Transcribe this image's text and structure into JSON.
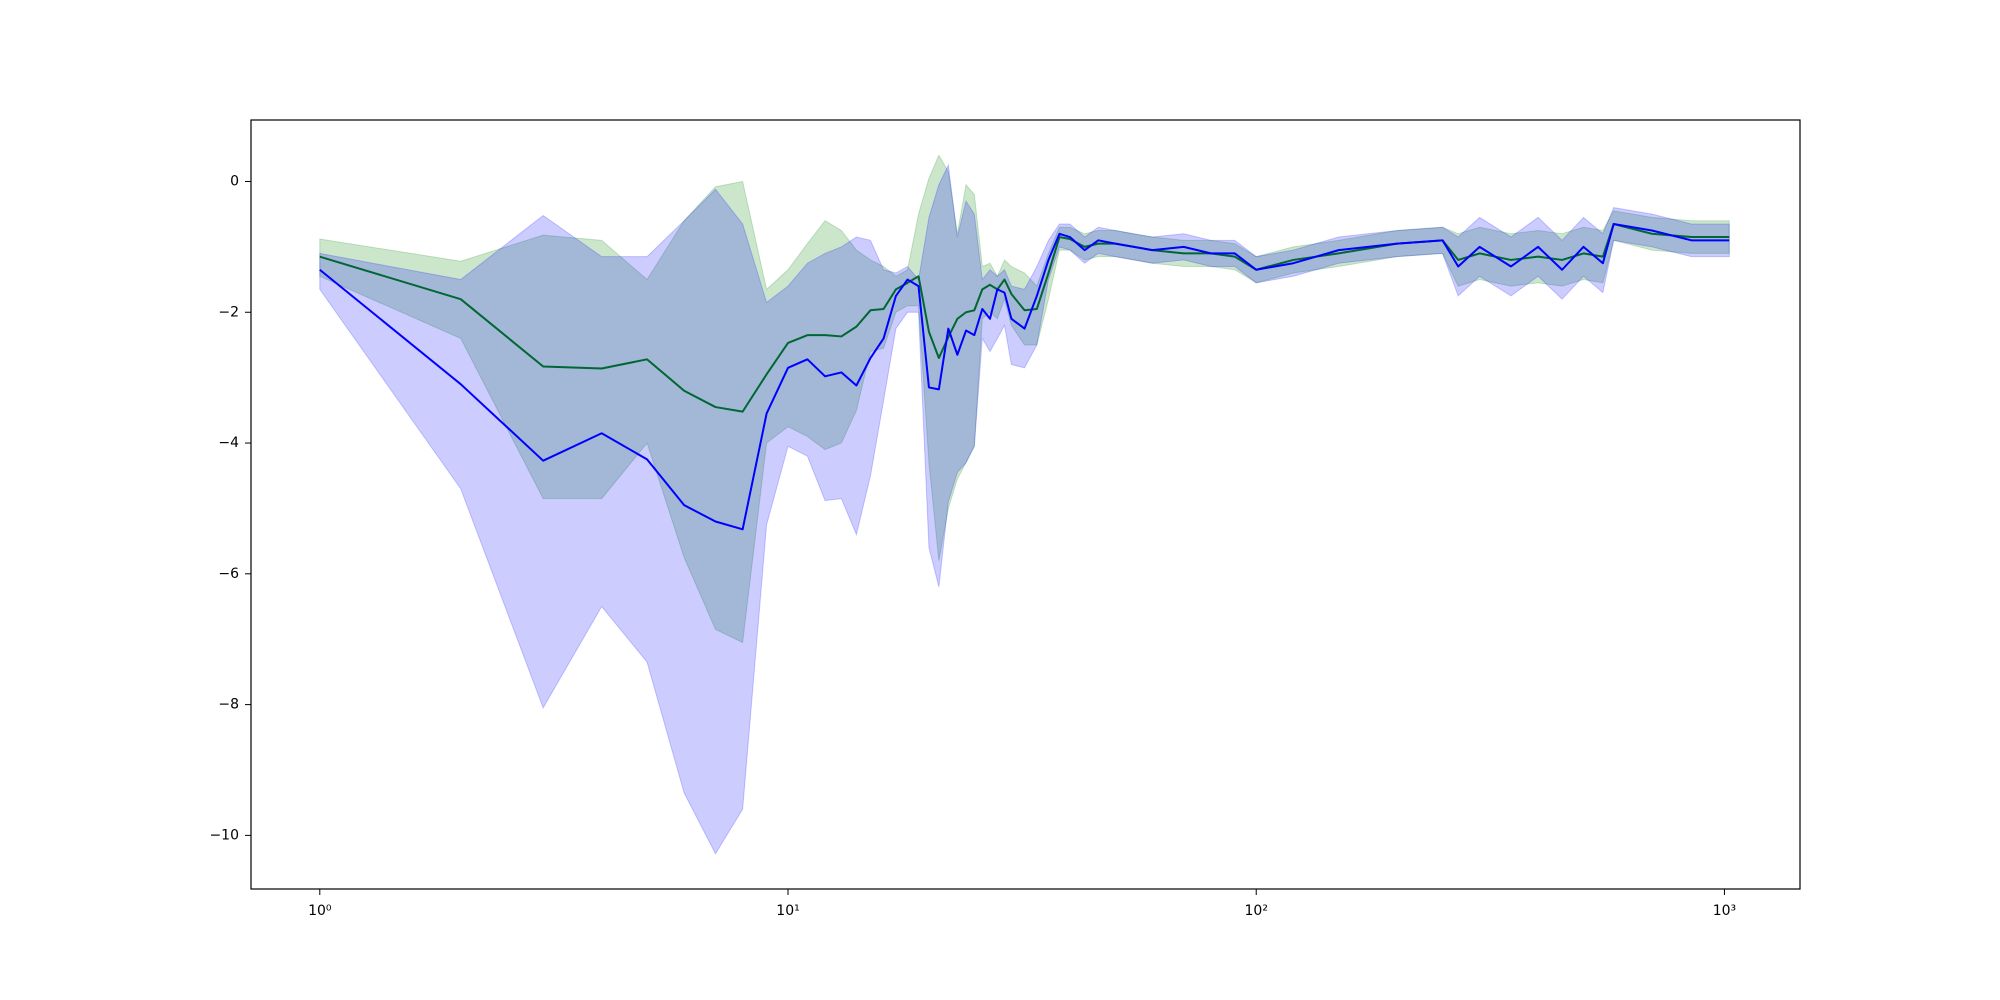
{
  "chart_data": {
    "type": "line",
    "xscale": "log",
    "x": [
      1,
      2,
      3,
      4,
      5,
      6,
      7,
      8,
      9,
      10,
      11,
      12,
      13,
      14,
      15,
      16,
      17,
      18,
      19,
      20,
      21,
      22,
      23,
      24,
      25,
      26,
      27,
      28,
      29,
      30,
      32,
      34,
      36,
      38,
      40,
      43,
      46,
      50,
      60,
      70,
      80,
      90,
      100,
      120,
      150,
      200,
      250,
      270,
      300,
      350,
      400,
      450,
      500,
      550,
      580,
      700,
      850,
      1024
    ],
    "series": [
      {
        "color": "#008000",
        "values": [
          -1.15,
          -1.8,
          -2.83,
          -2.86,
          -2.72,
          -3.2,
          -3.45,
          -3.52,
          -2.95,
          -2.47,
          -2.35,
          -2.35,
          -2.37,
          -2.22,
          -1.97,
          -1.95,
          -1.65,
          -1.55,
          -1.45,
          -2.3,
          -2.7,
          -2.38,
          -2.1,
          -2.0,
          -1.97,
          -1.65,
          -1.58,
          -1.65,
          -1.5,
          -1.72,
          -1.97,
          -1.95,
          -1.4,
          -0.85,
          -0.88,
          -1.0,
          -0.95,
          -0.95,
          -1.05,
          -1.1,
          -1.1,
          -1.15,
          -1.35,
          -1.2,
          -1.1,
          -0.95,
          -0.9,
          -1.2,
          -1.1,
          -1.2,
          -1.15,
          -1.2,
          -1.1,
          -1.15,
          -0.65,
          -0.8,
          -0.85,
          -0.85
        ],
        "lower": [
          -1.45,
          -2.4,
          -4.85,
          -4.85,
          -4.0,
          -5.75,
          -6.85,
          -7.05,
          -4.0,
          -3.75,
          -3.9,
          -4.1,
          -4.0,
          -3.5,
          -2.6,
          -2.55,
          -2.0,
          -1.9,
          -1.9,
          -4.3,
          -5.8,
          -5.0,
          -4.55,
          -4.3,
          -4.05,
          -2.1,
          -2.0,
          -2.1,
          -1.8,
          -2.2,
          -2.5,
          -2.5,
          -1.8,
          -1.05,
          -1.05,
          -1.2,
          -1.15,
          -1.15,
          -1.25,
          -1.3,
          -1.3,
          -1.35,
          -1.55,
          -1.4,
          -1.3,
          -1.15,
          -1.1,
          -1.6,
          -1.5,
          -1.6,
          -1.55,
          -1.6,
          -1.5,
          -1.55,
          -0.9,
          -1.05,
          -1.1,
          -1.1
        ],
        "upper": [
          -0.88,
          -1.22,
          -0.82,
          -0.9,
          -1.5,
          -0.6,
          -0.08,
          0.0,
          -1.65,
          -1.35,
          -0.95,
          -0.6,
          -0.75,
          -1.05,
          -1.2,
          -1.3,
          -1.45,
          -1.35,
          -0.5,
          0.05,
          0.4,
          0.15,
          -0.8,
          -0.05,
          -0.2,
          -1.3,
          -1.25,
          -1.45,
          -1.2,
          -1.3,
          -1.4,
          -1.6,
          -1.1,
          -0.7,
          -0.7,
          -0.8,
          -0.75,
          -0.75,
          -0.85,
          -0.9,
          -0.9,
          -0.95,
          -1.15,
          -1.0,
          -0.9,
          -0.75,
          -0.7,
          -0.8,
          -0.7,
          -0.8,
          -0.75,
          -0.8,
          -0.7,
          -0.75,
          -0.45,
          -0.55,
          -0.6,
          -0.6
        ]
      },
      {
        "color": "#0000ff",
        "values": [
          -1.35,
          -3.1,
          -4.27,
          -3.85,
          -4.25,
          -4.95,
          -5.2,
          -5.32,
          -3.55,
          -2.85,
          -2.72,
          -2.98,
          -2.92,
          -3.12,
          -2.7,
          -2.4,
          -1.75,
          -1.5,
          -1.6,
          -3.15,
          -3.18,
          -2.25,
          -2.65,
          -2.28,
          -2.35,
          -1.95,
          -2.1,
          -1.65,
          -1.7,
          -2.1,
          -2.25,
          -1.75,
          -1.2,
          -0.8,
          -0.85,
          -1.05,
          -0.9,
          -0.95,
          -1.05,
          -1.0,
          -1.1,
          -1.1,
          -1.35,
          -1.25,
          -1.05,
          -0.95,
          -0.9,
          -1.3,
          -1.0,
          -1.3,
          -1.0,
          -1.35,
          -1.0,
          -1.25,
          -0.65,
          -0.75,
          -0.9,
          -0.9
        ],
        "lower": [
          -1.65,
          -4.7,
          -8.05,
          -6.5,
          -7.35,
          -9.35,
          -10.28,
          -9.6,
          -5.25,
          -4.05,
          -4.2,
          -4.88,
          -4.85,
          -5.4,
          -4.5,
          -3.35,
          -2.25,
          -2.0,
          -2.0,
          -5.6,
          -6.2,
          -4.9,
          -4.45,
          -4.3,
          -4.05,
          -2.4,
          -2.6,
          -2.4,
          -2.2,
          -2.8,
          -2.85,
          -2.5,
          -1.5,
          -1.0,
          -1.05,
          -1.25,
          -1.1,
          -1.15,
          -1.25,
          -1.2,
          -1.3,
          -1.3,
          -1.55,
          -1.45,
          -1.25,
          -1.15,
          -1.1,
          -1.75,
          -1.45,
          -1.75,
          -1.45,
          -1.8,
          -1.45,
          -1.7,
          -0.9,
          -1.0,
          -1.15,
          -1.15
        ],
        "upper": [
          -1.1,
          -1.5,
          -0.52,
          -1.15,
          -1.15,
          -0.6,
          -0.12,
          -0.65,
          -1.85,
          -1.6,
          -1.25,
          -1.1,
          -1.0,
          -0.85,
          -0.9,
          -1.35,
          -1.4,
          -1.3,
          -1.5,
          -0.55,
          -0.05,
          0.25,
          -0.85,
          -0.3,
          -0.5,
          -1.5,
          -1.35,
          -1.45,
          -1.35,
          -1.6,
          -1.65,
          -1.3,
          -0.9,
          -0.65,
          -0.65,
          -0.85,
          -0.7,
          -0.75,
          -0.85,
          -0.8,
          -0.9,
          -0.9,
          -1.15,
          -1.05,
          -0.85,
          -0.75,
          -0.7,
          -0.85,
          -0.55,
          -0.85,
          -0.55,
          -0.9,
          -0.55,
          -0.8,
          -0.4,
          -0.5,
          -0.65,
          -0.65
        ]
      }
    ],
    "xlim": [
      0.713,
      1450
    ],
    "ylim": [
      -10.82,
      0.94
    ],
    "xticks": [
      {
        "value": 1,
        "label": "10⁰"
      },
      {
        "value": 10,
        "label": "10¹"
      },
      {
        "value": 100,
        "label": "10²"
      },
      {
        "value": 1000,
        "label": "10³"
      }
    ],
    "yticks": [
      {
        "value": 0,
        "label": "0"
      },
      {
        "value": -2,
        "label": "−2"
      },
      {
        "value": -4,
        "label": "−4"
      },
      {
        "value": -6,
        "label": "−6"
      },
      {
        "value": -8,
        "label": "−8"
      },
      {
        "value": -10,
        "label": "−10"
      }
    ],
    "band_opacity": 0.2
  }
}
